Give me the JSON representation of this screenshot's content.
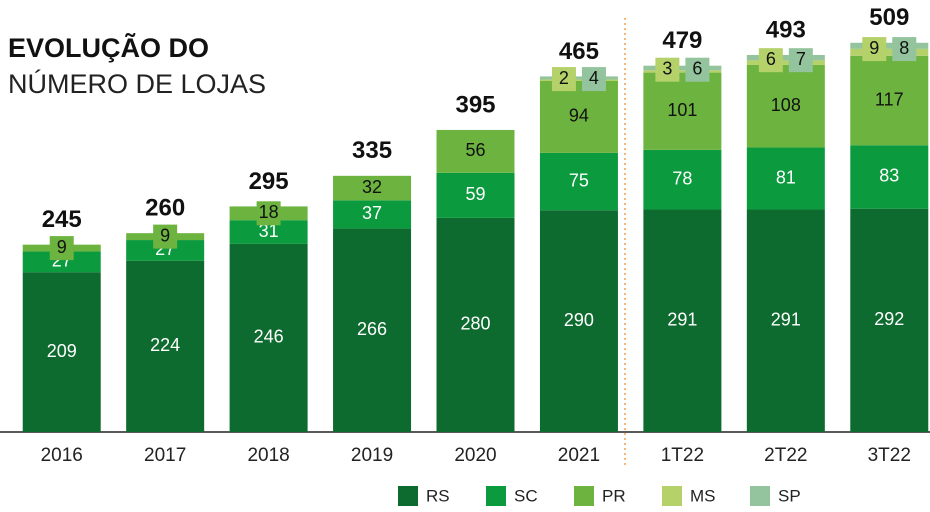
{
  "chart_data": {
    "type": "stacked_bar",
    "title": "EVOLUÇÃO DO",
    "subtitle": "NÚMERO DE LOJAS",
    "categories": [
      "2016",
      "2017",
      "2018",
      "2019",
      "2020",
      "2021",
      "1T22",
      "2T22",
      "3T22"
    ],
    "series": [
      {
        "name": "RS",
        "color": "#0e6b2f",
        "values": [
          209,
          224,
          246,
          266,
          280,
          290,
          291,
          291,
          292
        ]
      },
      {
        "name": "SC",
        "color": "#0b9a3e",
        "values": [
          27,
          27,
          31,
          37,
          59,
          75,
          78,
          81,
          83
        ]
      },
      {
        "name": "PR",
        "color": "#6db33f",
        "values": [
          9,
          9,
          18,
          32,
          56,
          94,
          101,
          108,
          117
        ]
      },
      {
        "name": "MS",
        "color": "#b5d16a",
        "values": [
          null,
          null,
          null,
          null,
          null,
          2,
          3,
          6,
          9
        ]
      },
      {
        "name": "SP",
        "color": "#93c49d",
        "values": [
          null,
          null,
          null,
          null,
          null,
          4,
          6,
          7,
          8
        ]
      }
    ],
    "totals": [
      245,
      260,
      295,
      335,
      395,
      465,
      479,
      493,
      509
    ],
    "ylim": [
      0,
      510
    ],
    "legend": "bottom"
  }
}
